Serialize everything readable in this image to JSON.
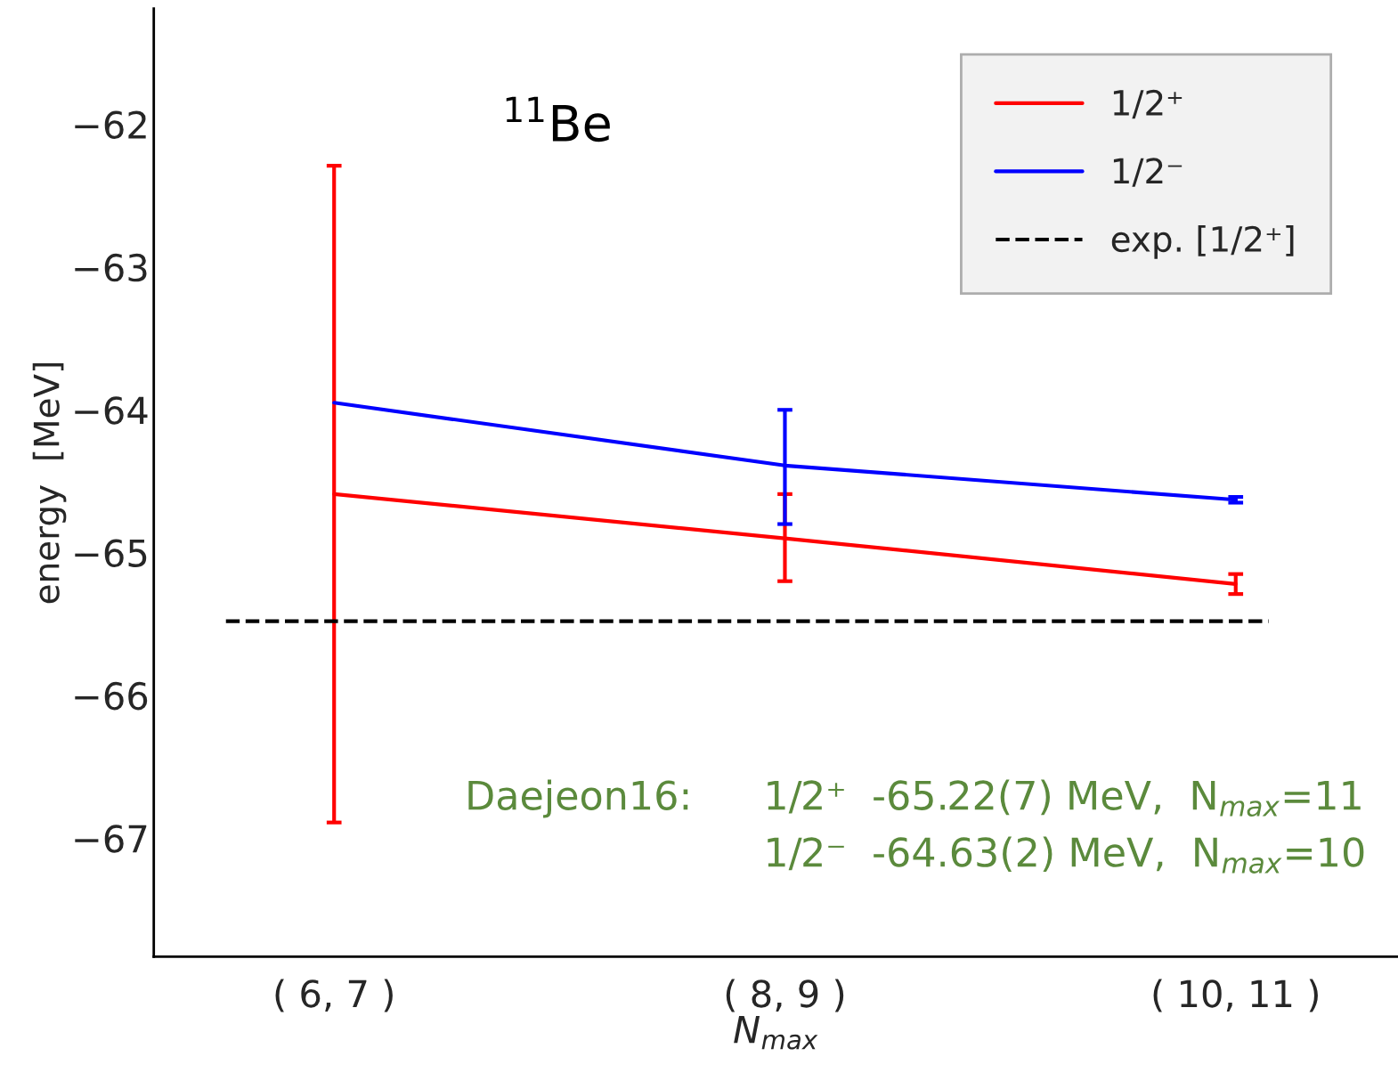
{
  "chart_data": {
    "type": "line",
    "xlabel": "N$_{max}$",
    "ylabel": "energy  [MeV]",
    "categories": [
      "( 6, 7 )",
      "( 8, 9 )",
      "( 10, 11 )"
    ],
    "series": [
      {
        "name": "1/2⁺",
        "color": "#ff0000",
        "values": [
          -64.59,
          -64.9,
          -65.22
        ],
        "errors": [
          [
            -66.89,
            -62.29
          ],
          [
            -65.2,
            -64.59
          ],
          [
            -65.29,
            -65.15
          ]
        ]
      },
      {
        "name": "1/2⁻",
        "color": "#0000ff",
        "values": [
          -63.95,
          -64.39,
          -64.63
        ],
        "errors": [
          null,
          [
            -64.8,
            -64.0
          ],
          [
            -64.65,
            -64.61
          ]
        ]
      }
    ],
    "ref_lines": [
      {
        "axis": "y",
        "value": -65.48,
        "label": "exp. [1/2⁺]",
        "color": "#000000",
        "line_style": "dashed"
      }
    ],
    "ylim": [
      -67.83,
      -61.19
    ],
    "yticks": [
      {
        "value": -67,
        "label": "−67"
      },
      {
        "value": -66,
        "label": "−66"
      },
      {
        "value": -65,
        "label": "−65"
      },
      {
        "value": -64,
        "label": "−64"
      },
      {
        "value": -63,
        "label": "−63"
      },
      {
        "value": -62,
        "label": "−62"
      }
    ],
    "annotations": [
      "$^{11}$Be",
      "Daejeon16:",
      "1/2⁺  -65.22(7) MeV,  N$_{max}$=11",
      "1/2⁻  -64.63(2) MeV,  N$_{max}$=10"
    ],
    "legend": "top right",
    "grid": false
  }
}
